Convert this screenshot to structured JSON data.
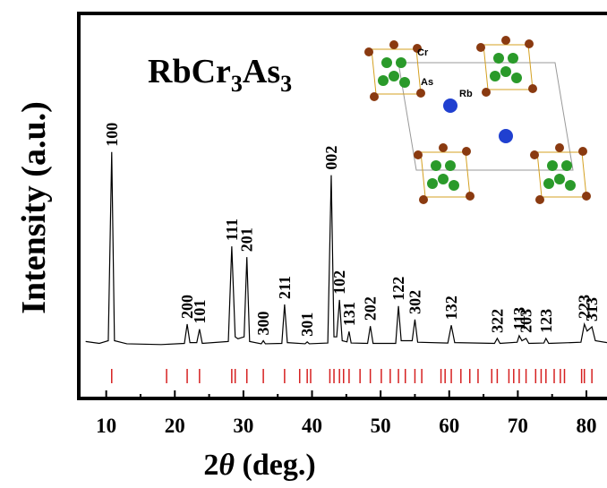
{
  "chart_data": {
    "type": "line",
    "title": [
      "RbCr",
      "3",
      "As",
      "3"
    ],
    "xlabel": [
      "2",
      "θ",
      " (deg.)"
    ],
    "ylabel": "Intensity (a.u.)",
    "xlim": [
      6,
      83
    ],
    "ylim": [
      0,
      100
    ],
    "xticks": [
      10,
      20,
      30,
      40,
      50,
      60,
      70,
      80
    ],
    "xminorticks": [
      15,
      25,
      35,
      45,
      55,
      65,
      75
    ],
    "series": [
      {
        "color": "#000000",
        "x": [
          7,
          9,
          10.3,
          10.8,
          11.2,
          13,
          18,
          21.4,
          21.8,
          22.2,
          23.2,
          23.6,
          24,
          27.8,
          28.3,
          28.8,
          29.2,
          30.1,
          30.5,
          30.9,
          32.6,
          32.9,
          33.2,
          35.6,
          36,
          36.4,
          39,
          39.3,
          39.6,
          42.3,
          42.8,
          43.2,
          43.6,
          44,
          44.4,
          45.1,
          45.4,
          45.7,
          48.1,
          48.5,
          48.9,
          52.2,
          52.6,
          53,
          54.6,
          55,
          55.4,
          59.8,
          60.3,
          60.8,
          66.6,
          67,
          67.4,
          69.9,
          70.2,
          70.6,
          71.2,
          71.6,
          73.8,
          74.1,
          74.5,
          79.2,
          79.7,
          80.1,
          80.8,
          81.3,
          83
        ],
        "values": [
          14.8,
          14.3,
          15,
          64,
          15,
          14.2,
          14,
          14.3,
          19.3,
          14.5,
          14.5,
          18,
          14.3,
          14.8,
          39.5,
          16,
          15.5,
          16,
          36.7,
          14.8,
          14.2,
          15,
          14.2,
          14.3,
          24.4,
          14.5,
          14.2,
          14.7,
          14.2,
          14.4,
          58,
          16,
          16,
          25.6,
          15,
          14.7,
          17.4,
          14.4,
          14.3,
          18.8,
          14.3,
          14.3,
          24,
          15,
          15,
          20.5,
          14.6,
          14.4,
          19,
          14.5,
          14.3,
          15.6,
          14.3,
          14.6,
          16.3,
          15,
          15.6,
          14.3,
          14.4,
          15.6,
          14.3,
          14.6,
          19.3,
          17.5,
          18.6,
          15,
          14.5
        ]
      }
    ],
    "annotations": [
      {
        "text": "100",
        "x": 10.8
      },
      {
        "text": "200",
        "x": 21.8
      },
      {
        "text": "101",
        "x": 23.6
      },
      {
        "text": "111",
        "x": 28.3
      },
      {
        "text": "201",
        "x": 30.5
      },
      {
        "text": "300",
        "x": 32.9
      },
      {
        "text": "211",
        "x": 36
      },
      {
        "text": "301",
        "x": 39.3
      },
      {
        "text": "002",
        "x": 42.8
      },
      {
        "text": "102",
        "x": 44
      },
      {
        "text": "131",
        "x": 45.4
      },
      {
        "text": "202",
        "x": 48.5
      },
      {
        "text": "122",
        "x": 52.6
      },
      {
        "text": "302",
        "x": 55
      },
      {
        "text": "132",
        "x": 60.3
      },
      {
        "text": "322",
        "x": 67
      },
      {
        "text": "113",
        "x": 70.2
      },
      {
        "text": "203",
        "x": 71.2
      },
      {
        "text": "123",
        "x": 74.1
      },
      {
        "text": "223",
        "x": 79.7
      },
      {
        "text": "313",
        "x": 80.8
      }
    ],
    "reflections": {
      "color": "#d62020",
      "x": [
        10.8,
        18.8,
        21.8,
        23.6,
        28.3,
        28.8,
        30.5,
        32.9,
        36.0,
        38.2,
        39.3,
        39.8,
        42.6,
        43.2,
        44.0,
        44.6,
        45.4,
        47.0,
        48.5,
        50.1,
        51.4,
        52.6,
        53.6,
        55.0,
        56.0,
        58.8,
        59.4,
        60.3,
        61.7,
        63.0,
        64.2,
        66.2,
        67.0,
        68.7,
        69.4,
        70.2,
        71.2,
        72.6,
        73.4,
        74.1,
        75.3,
        76.2,
        76.8,
        79.3,
        79.7,
        80.8
      ]
    },
    "inset_labels": [
      "Cr",
      "As",
      "Rb"
    ]
  }
}
